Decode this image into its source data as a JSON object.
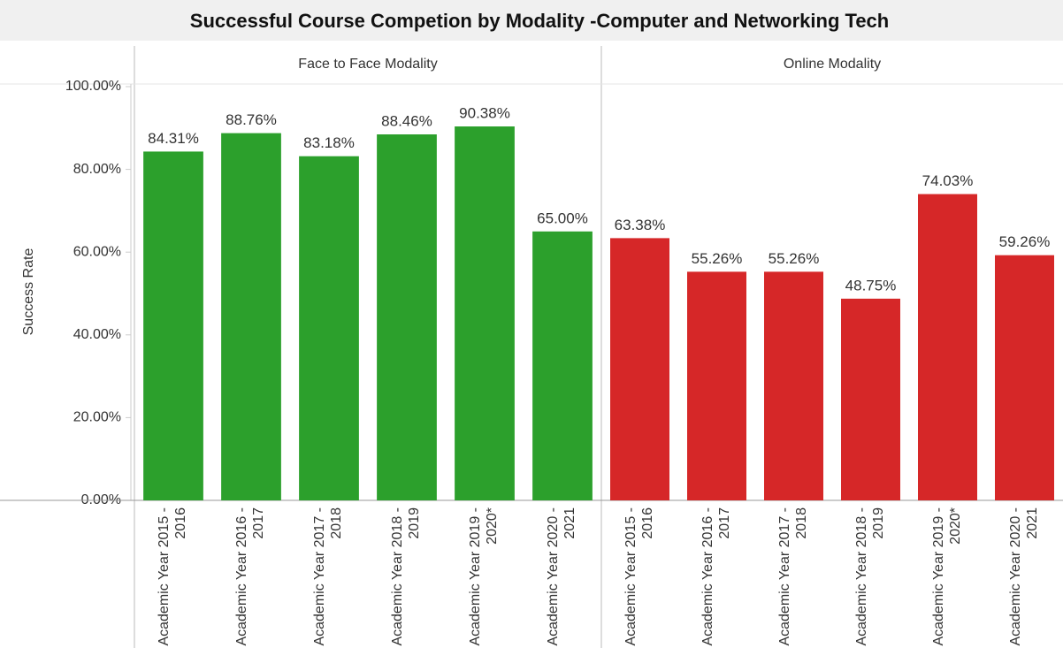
{
  "chart_data": {
    "type": "bar",
    "title": "Successful Course Competion by Modality -Computer and Networking Tech",
    "y_label": "Success Rate",
    "categories": [
      "Academic Year 2015 - 2016",
      "Academic Year 2016 - 2017",
      "Academic Year 2017 - 2018",
      "Academic Year 2018 - 2019",
      "Academic Year 2019 - 2020*",
      "Academic Year 2020 - 2021"
    ],
    "series": [
      {
        "name": "Face to Face Modality",
        "color": "#2ca02c",
        "values": [
          84.31,
          88.76,
          83.18,
          88.46,
          90.38,
          65.0
        ],
        "value_labels": [
          "84.31%",
          "88.76%",
          "83.18%",
          "88.46%",
          "90.38%",
          "65.00%"
        ]
      },
      {
        "name": "Online Modality",
        "color": "#d62728",
        "values": [
          63.38,
          55.26,
          55.26,
          48.75,
          74.03,
          59.26
        ],
        "value_labels": [
          "63.38%",
          "55.26%",
          "55.26%",
          "48.75%",
          "74.03%",
          "59.26%"
        ]
      }
    ],
    "ylim": [
      0,
      100
    ],
    "yticks": [
      {
        "value": 0,
        "label": "0.00%"
      },
      {
        "value": 20,
        "label": "20.00%"
      },
      {
        "value": 40,
        "label": "40.00%"
      },
      {
        "value": 60,
        "label": "60.00%"
      },
      {
        "value": 80,
        "label": "80.00%"
      },
      {
        "value": 100,
        "label": "100.00%"
      }
    ],
    "grid": false
  }
}
